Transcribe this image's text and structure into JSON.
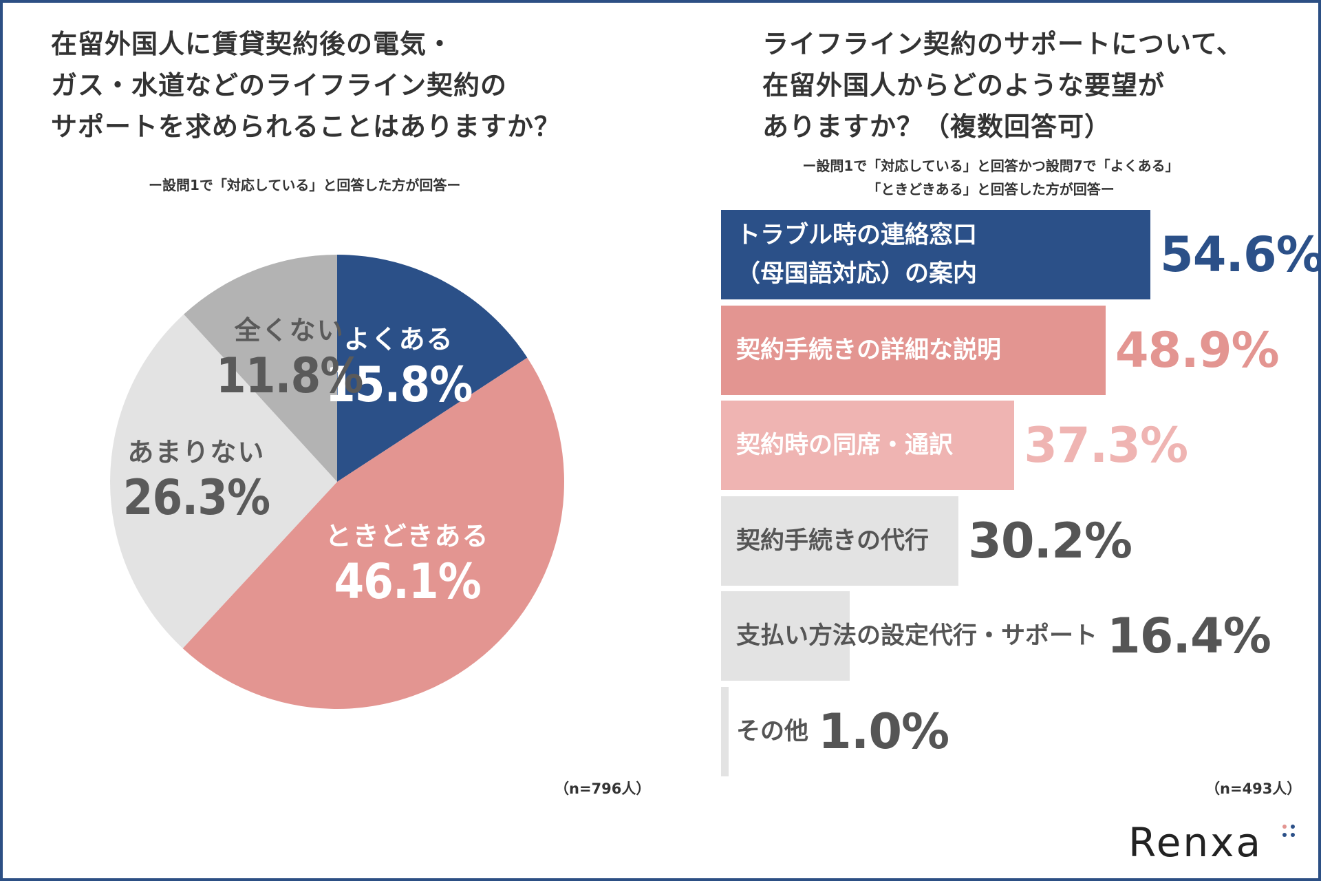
{
  "left_chart": {
    "title_lines": [
      "在留外国人に賃貸契約後の電気・",
      "ガス・水道などのライフライン契約の",
      "サポートを求められることはありますか？"
    ],
    "subtitle": "ー設問1で「対応している」と回答した方が回答ー",
    "sample": "（n=796人）"
  },
  "right_chart": {
    "title_lines": [
      "ライフライン契約のサポートについて、",
      "在留外国人からどのような要望が",
      "ありますか？（複数回答可）"
    ],
    "subtitle_lines": [
      "ー設問1で「対応している」と回答かつ設問7で「よくある」",
      "「ときどきある」と回答した方が回答ー"
    ],
    "sample": "（n=493人）"
  },
  "chart_data": [
    {
      "type": "pie",
      "title": "在留外国人に賃貸契約後の電気・ガス・水道などのライフライン契約のサポートを求められることはありますか？",
      "slices": [
        {
          "label": "よくある",
          "value": 15.8,
          "display": "15.8%",
          "color": "#2b5088",
          "text_color": "#ffffff"
        },
        {
          "label": "ときどきある",
          "value": 46.1,
          "display": "46.1%",
          "color": "#e39591",
          "text_color": "#ffffff"
        },
        {
          "label": "あまりない",
          "value": 26.3,
          "display": "26.3%",
          "color": "#e3e3e3",
          "text_color": "#5a5a5a"
        },
        {
          "label": "全くない",
          "value": 11.8,
          "display": "11.8%",
          "color": "#b3b3b3",
          "text_color": "#5a5a5a"
        }
      ]
    },
    {
      "type": "bar",
      "orientation": "horizontal",
      "title": "ライフライン契約のサポートについて、在留外国人からどのような要望がありますか？（複数回答可）",
      "xlim": [
        0,
        100
      ],
      "bars": [
        {
          "label_lines": [
            "トラブル時の連絡窓口",
            "（母国語対応）の案内"
          ],
          "value": 54.6,
          "display": "54.6%",
          "color": "#2b5088",
          "label_color": "#ffffff",
          "value_color": "#2b5088"
        },
        {
          "label_lines": [
            "契約手続きの詳細な説明"
          ],
          "value": 48.9,
          "display": "48.9%",
          "color": "#e39591",
          "label_color": "#ffffff",
          "value_color": "#e39591"
        },
        {
          "label_lines": [
            "契約時の同席・通訳"
          ],
          "value": 37.3,
          "display": "37.3%",
          "color": "#efb4b2",
          "label_color": "#ffffff",
          "value_color": "#efb4b2"
        },
        {
          "label_lines": [
            "契約手続きの代行"
          ],
          "value": 30.2,
          "display": "30.2%",
          "color": "#e3e3e3",
          "label_color": "#555555",
          "value_color": "#555555"
        },
        {
          "label_lines": [
            "支払い方法の設定代行・サポート"
          ],
          "value": 16.4,
          "display": "16.4%",
          "color": "#e3e3e3",
          "label_color": "#555555",
          "value_color": "#555555"
        },
        {
          "label_lines": [
            "その他"
          ],
          "value": 1.0,
          "display": "1.0%",
          "color": "#e3e3e3",
          "label_color": "#555555",
          "value_color": "#555555"
        }
      ]
    }
  ],
  "brand": {
    "name": "Renxa"
  }
}
